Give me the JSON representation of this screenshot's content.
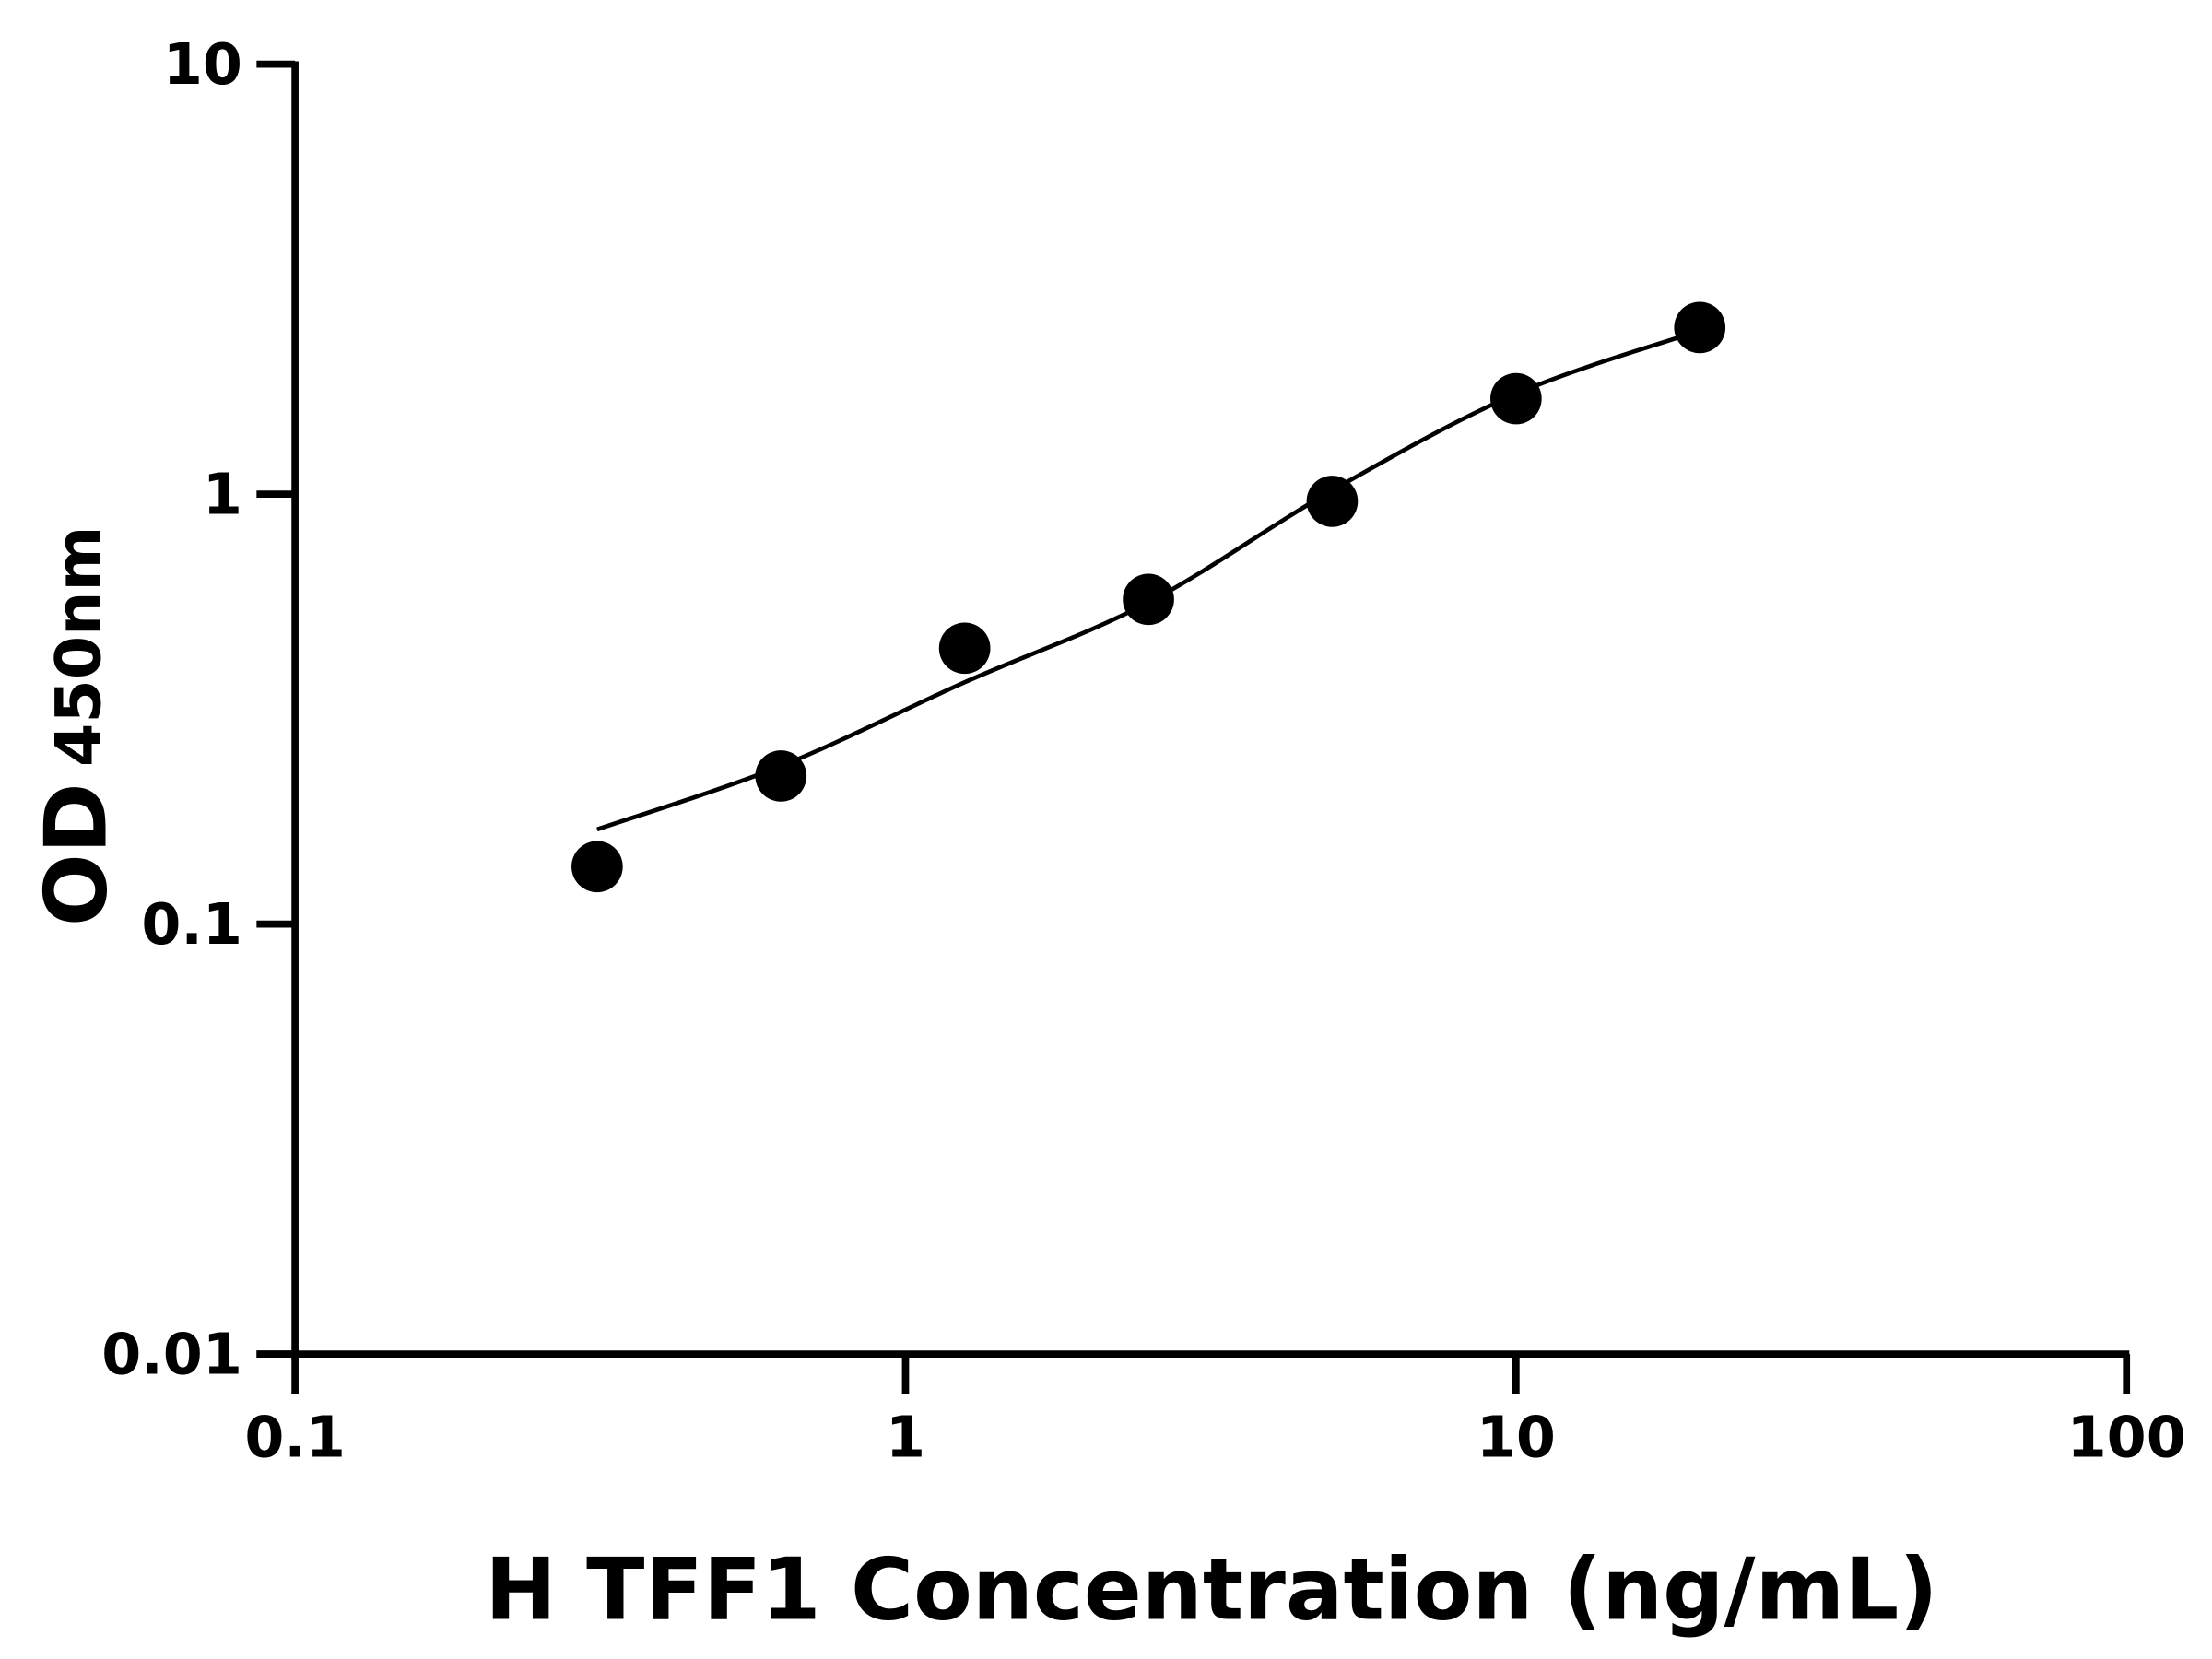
{
  "chart_data": {
    "type": "scatter",
    "title": "",
    "xlabel": "H TFF1 Concentration (ng/mL)",
    "ylabel_main": "OD",
    "ylabel_sub": "450nm",
    "xscale": "log",
    "yscale": "log",
    "xlim": [
      0.1,
      100
    ],
    "ylim": [
      0.01,
      10
    ],
    "xticks": [
      {
        "value": 0.1,
        "label": "0.1"
      },
      {
        "value": 1,
        "label": "1"
      },
      {
        "value": 10,
        "label": "10"
      },
      {
        "value": 100,
        "label": "100"
      }
    ],
    "yticks": [
      {
        "value": 0.01,
        "label": "0.01"
      },
      {
        "value": 0.1,
        "label": "0.1"
      },
      {
        "value": 1,
        "label": "1"
      },
      {
        "value": 10,
        "label": "10"
      }
    ],
    "grid": false,
    "points": {
      "x": [
        0.3125,
        0.625,
        1.25,
        2.5,
        5,
        10,
        20
      ],
      "y": [
        0.136,
        0.221,
        0.438,
        0.569,
        0.962,
        1.667,
        2.44
      ]
    },
    "fit_curve": {
      "x": [
        0.3125,
        0.625,
        1.25,
        2.5,
        5,
        10,
        20
      ],
      "y": [
        0.166,
        0.233,
        0.365,
        0.56,
        1.02,
        1.71,
        2.4
      ]
    },
    "color": "#000000"
  }
}
